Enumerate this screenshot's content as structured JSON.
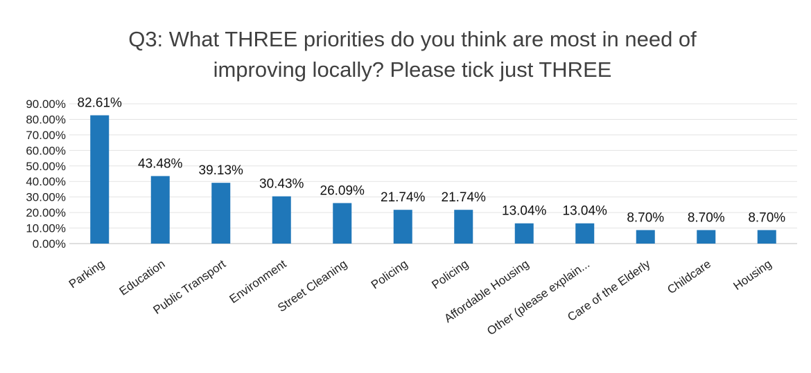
{
  "chart_data": {
    "type": "bar",
    "title": "Q3: What THREE priorities do you think are most in need of improving locally? Please tick just THREE",
    "title_lines": [
      "Q3: What THREE priorities do you think are most in need of",
      "improving locally? Please tick just THREE"
    ],
    "xlabel": "",
    "ylabel": "",
    "categories": [
      "Parking",
      "Education",
      "Public Transport",
      "Environment",
      "Street Cleaning",
      "Policing",
      "Policing",
      "Affordable Housing",
      "Other (please explain...",
      "Care of the Elderly",
      "Childcare",
      "Housing"
    ],
    "values": [
      82.61,
      43.48,
      39.13,
      30.43,
      26.09,
      21.74,
      21.74,
      13.04,
      13.04,
      8.7,
      8.7,
      8.7
    ],
    "data_labels": [
      "82.61%",
      "43.48%",
      "39.13%",
      "30.43%",
      "26.09%",
      "21.74%",
      "21.74%",
      "13.04%",
      "13.04%",
      "8.70%",
      "8.70%",
      "8.70%"
    ],
    "yticks": [
      0,
      10,
      20,
      30,
      40,
      50,
      60,
      70,
      80,
      90
    ],
    "ytick_labels": [
      "0.00%",
      "10.00%",
      "20.00%",
      "30.00%",
      "40.00%",
      "50.00%",
      "60.00%",
      "70.00%",
      "80.00%",
      "90.00%"
    ],
    "ylim": [
      0,
      90
    ],
    "grid": true,
    "legend": "none",
    "colors": {
      "bar": "#1f77b9",
      "title": "#404040",
      "text": "#222222",
      "grid": "#e3e3e3"
    }
  }
}
